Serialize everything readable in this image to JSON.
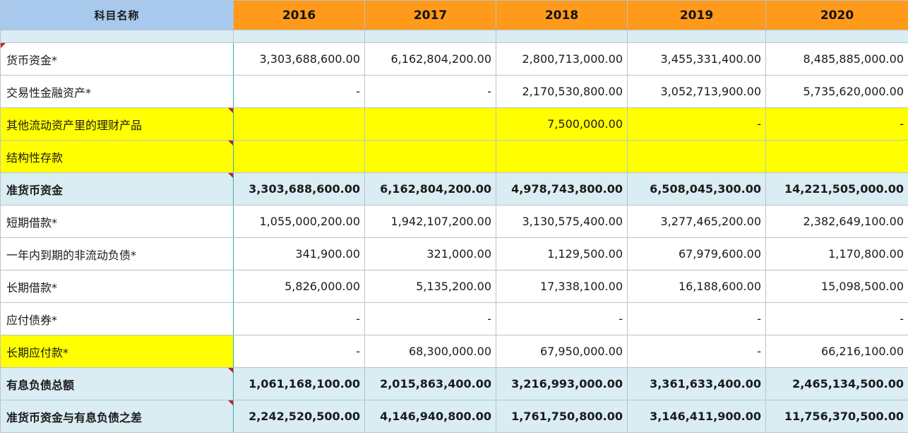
{
  "header": {
    "name_col": "科目名称",
    "years": [
      "2016",
      "2017",
      "2018",
      "2019",
      "2020"
    ]
  },
  "rows": [
    {
      "label": "货币资金*",
      "values": [
        "3,303,688,600.00",
        "6,162,804,200.00",
        "2,800,713,000.00",
        "3,455,331,400.00",
        "8,485,885,000.00"
      ]
    },
    {
      "label": "交易性金融资产*",
      "values": [
        "-",
        "-",
        "2,170,530,800.00",
        "3,052,713,900.00",
        "5,735,620,000.00"
      ]
    },
    {
      "label": "其他流动资产里的理财产品",
      "values": [
        "",
        "",
        "7,500,000.00",
        "-",
        "-"
      ]
    },
    {
      "label": "结构性存款",
      "values": [
        "",
        "",
        "",
        "",
        ""
      ]
    },
    {
      "label": "准货币资金",
      "values": [
        "3,303,688,600.00",
        "6,162,804,200.00",
        "4,978,743,800.00",
        "6,508,045,300.00",
        "14,221,505,000.00"
      ]
    },
    {
      "label": "短期借款*",
      "values": [
        "1,055,000,200.00",
        "1,942,107,200.00",
        "3,130,575,400.00",
        "3,277,465,200.00",
        "2,382,649,100.00"
      ]
    },
    {
      "label": "一年内到期的非流动负债*",
      "values": [
        "341,900.00",
        "321,000.00",
        "1,129,500.00",
        "67,979,600.00",
        "1,170,800.00"
      ]
    },
    {
      "label": "长期借款*",
      "values": [
        "5,826,000.00",
        "5,135,200.00",
        "17,338,100.00",
        "16,188,600.00",
        "15,098,500.00"
      ]
    },
    {
      "label": "应付债券*",
      "values": [
        "-",
        "-",
        "-",
        "-",
        "-"
      ]
    },
    {
      "label": "长期应付款*",
      "values": [
        "-",
        "68,300,000.00",
        "67,950,000.00",
        "-",
        "66,216,100.00"
      ]
    },
    {
      "label": "有息负债总额",
      "values": [
        "1,061,168,100.00",
        "2,015,863,400.00",
        "3,216,993,000.00",
        "3,361,633,400.00",
        "2,465,134,500.00"
      ]
    },
    {
      "label": "准货币资金与有息负债之差",
      "values": [
        "2,242,520,500.00",
        "4,146,940,800.00",
        "1,761,750,800.00",
        "3,146,411,900.00",
        "11,756,370,500.00"
      ]
    }
  ],
  "colors": {
    "header_name": "#a7c9ee",
    "header_year": "#ff9a1a",
    "highlight": "#ffff00",
    "subtotal": "#d9edf3",
    "comment_marker": "#c0202a"
  }
}
